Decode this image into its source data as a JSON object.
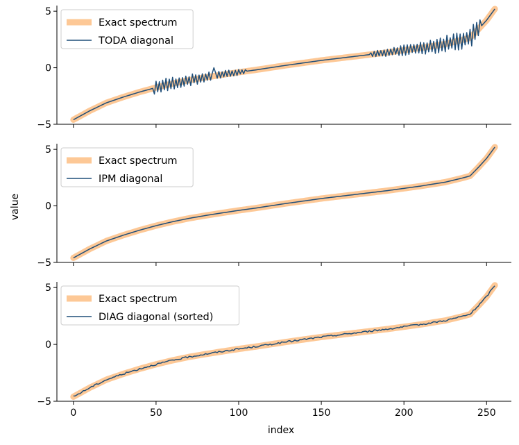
{
  "figure": {
    "xlabel": "index",
    "ylabel": "value"
  },
  "colors": {
    "exact": "#fdc896",
    "approx": "#1f4e79"
  },
  "chart_data": [
    {
      "type": "line",
      "xlim": [
        -10,
        265
      ],
      "ylim": [
        -5,
        5.5
      ],
      "xticks": [
        0,
        50,
        100,
        150,
        200,
        250
      ],
      "yticks": [
        -5,
        0,
        5
      ],
      "grid": false,
      "legend_position": "top-left",
      "series": [
        {
          "name": "Exact spectrum",
          "role": "exact"
        },
        {
          "name": "TODA diagonal",
          "role": "approx",
          "model": "noisy",
          "noise": [
            {
              "from": 49,
              "to": 104,
              "amp_start": 0.7,
              "amp_end": 0.25
            },
            {
              "from": 180,
              "to": 246,
              "amp_start": 0.25,
              "amp_end": 1.0
            }
          ],
          "spike": {
            "x": 85,
            "y": 0.0
          }
        }
      ]
    },
    {
      "type": "line",
      "xlim": [
        -10,
        265
      ],
      "ylim": [
        -5,
        5.5
      ],
      "xticks": [
        0,
        50,
        100,
        150,
        200,
        250
      ],
      "yticks": [
        -5,
        0,
        5
      ],
      "grid": false,
      "legend_position": "top-left",
      "series": [
        {
          "name": "Exact spectrum",
          "role": "exact"
        },
        {
          "name": "IPM diagonal",
          "role": "approx",
          "model": "exact"
        }
      ]
    },
    {
      "type": "line",
      "xlim": [
        -10,
        265
      ],
      "ylim": [
        -5,
        5.5
      ],
      "xticks": [
        0,
        50,
        100,
        150,
        200,
        250
      ],
      "xticklabels": [
        "0",
        "50",
        "100",
        "150",
        "200",
        "250"
      ],
      "yticks": [
        -5,
        0,
        5
      ],
      "grid": false,
      "legend_position": "top-left",
      "series": [
        {
          "name": "Exact spectrum",
          "role": "exact"
        },
        {
          "name": "DIAG diagonal (sorted)",
          "role": "approx",
          "model": "jitter",
          "amp": 0.07
        }
      ]
    }
  ],
  "spectrum_knots": [
    [
      0,
      -4.6
    ],
    [
      5,
      -4.2
    ],
    [
      10,
      -3.8
    ],
    [
      15,
      -3.45
    ],
    [
      20,
      -3.1
    ],
    [
      30,
      -2.6
    ],
    [
      40,
      -2.15
    ],
    [
      50,
      -1.75
    ],
    [
      60,
      -1.4
    ],
    [
      70,
      -1.1
    ],
    [
      80,
      -0.85
    ],
    [
      90,
      -0.62
    ],
    [
      100,
      -0.4
    ],
    [
      110,
      -0.2
    ],
    [
      128,
      0.2
    ],
    [
      150,
      0.65
    ],
    [
      170,
      1.0
    ],
    [
      190,
      1.35
    ],
    [
      210,
      1.75
    ],
    [
      225,
      2.1
    ],
    [
      235,
      2.45
    ],
    [
      240,
      2.65
    ],
    [
      245,
      3.4
    ],
    [
      250,
      4.2
    ],
    [
      255,
      5.2
    ]
  ],
  "n_points": 256
}
